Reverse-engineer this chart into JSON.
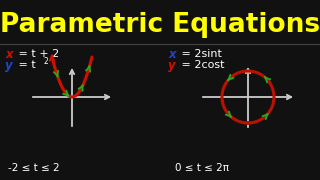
{
  "title": "Parametric Equations",
  "title_color": "#FFFF00",
  "title_fontsize": 19,
  "bg_color": "#111111",
  "title_bg": "#111111",
  "axis_color": "#CCCCCC",
  "parabola_color": "#CC1100",
  "circle_color": "#BB1100",
  "green": "#22AA22",
  "white": "#FFFFFF",
  "red": "#CC1100",
  "blue": "#2244CC",
  "constraint_color": "#FFFFFF",
  "constraint1": "-2 ≤ t ≤ 2",
  "constraint2": "0 ≤ t ≤ 2π"
}
